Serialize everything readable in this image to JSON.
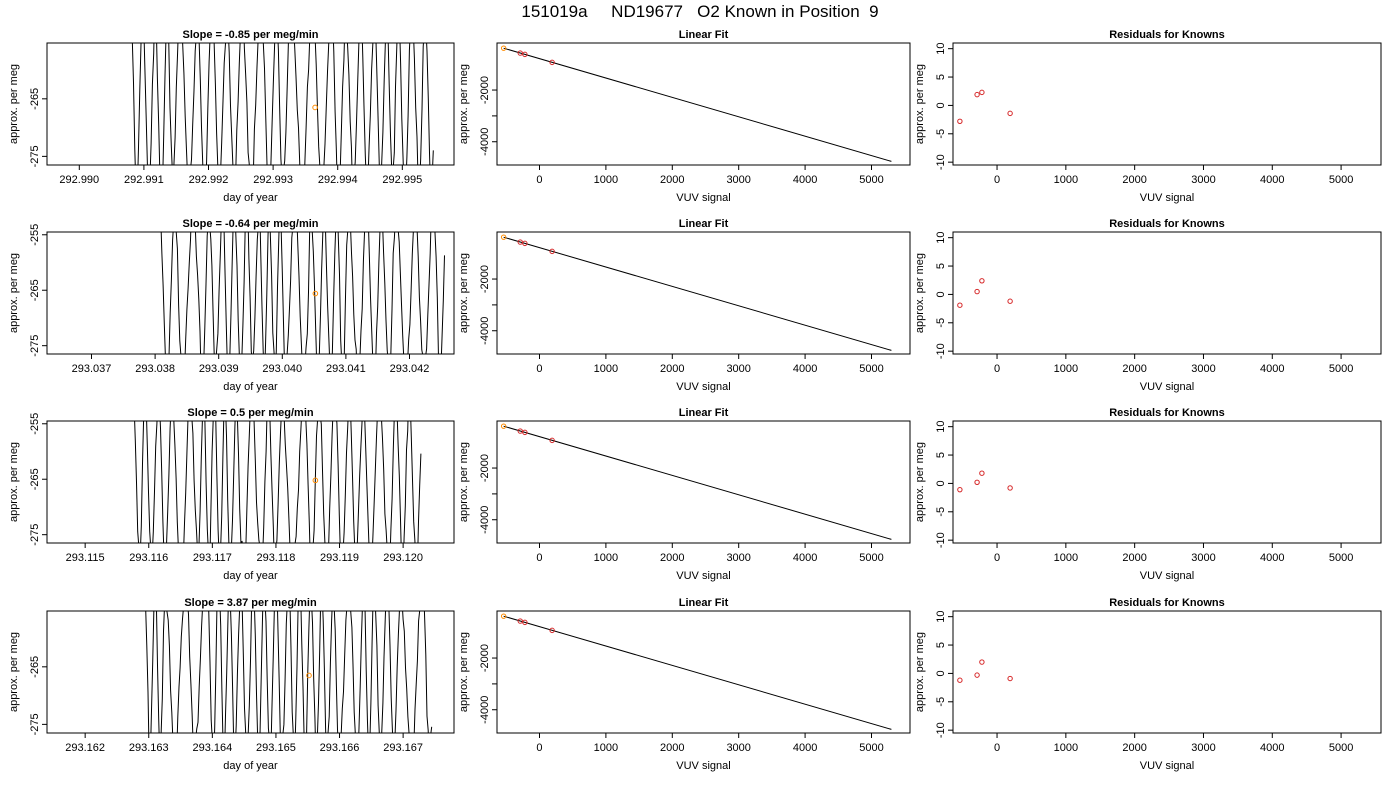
{
  "page": {
    "title": "151019a     ND19677   O2 Known in Position  9"
  },
  "colors": {
    "trace": "#000000",
    "known_highlight": "#ff8c00",
    "residual_point": "#d62728",
    "axis": "#000000"
  },
  "chart_data": [
    {
      "type": "line",
      "panel": "trace",
      "row": 1,
      "title": "Slope =  -0.85  per meg/min",
      "xlabel": "day of year",
      "ylabel": "approx. per meg",
      "xlim": [
        292.9895,
        292.9958
      ],
      "ylim": [
        -276.5,
        -255.3
      ],
      "xticks": [
        292.99,
        292.991,
        292.992,
        292.993,
        292.994,
        292.995
      ],
      "xtick_labels": [
        "292.990",
        "292.991",
        "292.992",
        "292.993",
        "292.994",
        "292.995"
      ],
      "yticks": [
        -275,
        -265
      ],
      "ytick_labels": [
        "-275",
        "-265"
      ],
      "trace_range": [
        292.9908,
        292.99548
      ],
      "trace_seed": 11,
      "highlight_point": {
        "x": 292.99365,
        "y": -266.5
      }
    },
    {
      "type": "line",
      "panel": "fit",
      "row": 1,
      "title": "Linear Fit",
      "xlabel": "VUV signal",
      "ylabel": "approx. per meg",
      "xlim": [
        -640,
        5580
      ],
      "ylim": [
        -4900,
        -180
      ],
      "xticks": [
        0,
        1000,
        2000,
        3000,
        4000,
        5000
      ],
      "xtick_labels": [
        "0",
        "1000",
        "2000",
        "3000",
        "4000",
        "5000"
      ],
      "yticks": [
        -4000,
        -3000,
        -2000
      ],
      "ytick_labels": [
        "-4000",
        "",
        "-2000"
      ],
      "line": {
        "x": [
          -540,
          5300
        ],
        "y": [
          -380,
          -4760
        ]
      },
      "known_points": [
        {
          "x": -540,
          "y": -380
        }
      ],
      "points": [
        {
          "x": -290,
          "y": -570
        },
        {
          "x": -220,
          "y": -620
        },
        {
          "x": 190,
          "y": -930
        }
      ]
    },
    {
      "type": "scatter",
      "panel": "residuals",
      "row": 1,
      "title": "Residuals for Knowns",
      "xlabel": "VUV signal",
      "ylabel": "approx. per meg",
      "xlim": [
        -640,
        5580
      ],
      "ylim": [
        -10.5,
        11
      ],
      "xticks": [
        0,
        1000,
        2000,
        3000,
        4000,
        5000
      ],
      "xtick_labels": [
        "0",
        "1000",
        "2000",
        "3000",
        "4000",
        "5000"
      ],
      "yticks": [
        -10,
        -5,
        0,
        5,
        10
      ],
      "ytick_labels": [
        "-10",
        "-5",
        "0",
        "5",
        "10"
      ],
      "points": [
        {
          "x": -540,
          "y": -2.8
        },
        {
          "x": -290,
          "y": 1.9
        },
        {
          "x": -220,
          "y": 2.3
        },
        {
          "x": 190,
          "y": -1.4
        }
      ]
    },
    {
      "type": "line",
      "panel": "trace",
      "row": 2,
      "title": "Slope =  -0.64  per meg/min",
      "xlabel": "day of year",
      "ylabel": "approx. per meg",
      "xlim": [
        293.0363,
        293.0427
      ],
      "ylim": [
        -276.5,
        -254.5
      ],
      "xticks": [
        293.037,
        293.038,
        293.039,
        293.04,
        293.041,
        293.042
      ],
      "xtick_labels": [
        "293.037",
        "293.038",
        "293.039",
        "293.040",
        "293.041",
        "293.042"
      ],
      "yticks": [
        -275,
        -265,
        -255
      ],
      "ytick_labels": [
        "-275",
        "-265",
        "-255"
      ],
      "trace_range": [
        293.03805,
        293.04255
      ],
      "trace_seed": 23,
      "highlight_point": {
        "x": 293.04052,
        "y": -265.6
      }
    },
    {
      "type": "line",
      "panel": "fit",
      "row": 2,
      "title": "Linear Fit",
      "xlabel": "VUV signal",
      "ylabel": "approx. per meg",
      "xlim": [
        -640,
        5580
      ],
      "ylim": [
        -4900,
        -180
      ],
      "xticks": [
        0,
        1000,
        2000,
        3000,
        4000,
        5000
      ],
      "xtick_labels": [
        "0",
        "1000",
        "2000",
        "3000",
        "4000",
        "5000"
      ],
      "yticks": [
        -4000,
        -3000,
        -2000
      ],
      "ytick_labels": [
        "-4000",
        "",
        "-2000"
      ],
      "line": {
        "x": [
          -540,
          5300
        ],
        "y": [
          -380,
          -4760
        ]
      },
      "known_points": [
        {
          "x": -540,
          "y": -380
        }
      ],
      "points": [
        {
          "x": -290,
          "y": -570
        },
        {
          "x": -220,
          "y": -620
        },
        {
          "x": 190,
          "y": -930
        }
      ]
    },
    {
      "type": "scatter",
      "panel": "residuals",
      "row": 2,
      "title": "Residuals for Knowns",
      "xlabel": "VUV signal",
      "ylabel": "approx. per meg",
      "xlim": [
        -640,
        5580
      ],
      "ylim": [
        -10.5,
        11
      ],
      "xticks": [
        0,
        1000,
        2000,
        3000,
        4000,
        5000
      ],
      "xtick_labels": [
        "0",
        "1000",
        "2000",
        "3000",
        "4000",
        "5000"
      ],
      "yticks": [
        -10,
        -5,
        0,
        5,
        10
      ],
      "ytick_labels": [
        "-10",
        "-5",
        "0",
        "5",
        "10"
      ],
      "points": [
        {
          "x": -540,
          "y": -1.9
        },
        {
          "x": -290,
          "y": 0.5
        },
        {
          "x": -220,
          "y": 2.4
        },
        {
          "x": 190,
          "y": -1.2
        }
      ]
    },
    {
      "type": "line",
      "panel": "trace",
      "row": 3,
      "title": "Slope =  0.5  per meg/min",
      "xlabel": "day of year",
      "ylabel": "approx. per meg",
      "xlim": [
        293.1144,
        293.1208
      ],
      "ylim": [
        -276.5,
        -254.5
      ],
      "xticks": [
        293.115,
        293.116,
        293.117,
        293.118,
        293.119,
        293.12
      ],
      "xtick_labels": [
        "293.115",
        "293.116",
        "293.117",
        "293.118",
        "293.119",
        "293.120"
      ],
      "yticks": [
        -275,
        -265,
        -255
      ],
      "ytick_labels": [
        "-275",
        "-265",
        "-255"
      ],
      "trace_range": [
        293.11575,
        293.12028
      ],
      "trace_seed": 37,
      "highlight_point": {
        "x": 293.11862,
        "y": -265.2
      }
    },
    {
      "type": "line",
      "panel": "fit",
      "row": 3,
      "title": "Linear Fit",
      "xlabel": "VUV signal",
      "ylabel": "approx. per meg",
      "xlim": [
        -640,
        5580
      ],
      "ylim": [
        -4900,
        -180
      ],
      "xticks": [
        0,
        1000,
        2000,
        3000,
        4000,
        5000
      ],
      "xtick_labels": [
        "0",
        "1000",
        "2000",
        "3000",
        "4000",
        "5000"
      ],
      "yticks": [
        -4000,
        -3000,
        -2000
      ],
      "ytick_labels": [
        "-4000",
        "",
        "-2000"
      ],
      "line": {
        "x": [
          -540,
          5300
        ],
        "y": [
          -380,
          -4760
        ]
      },
      "known_points": [
        {
          "x": -540,
          "y": -380
        }
      ],
      "points": [
        {
          "x": -290,
          "y": -570
        },
        {
          "x": -220,
          "y": -620
        },
        {
          "x": 190,
          "y": -930
        }
      ]
    },
    {
      "type": "scatter",
      "panel": "residuals",
      "row": 3,
      "title": "Residuals for Knowns",
      "xlabel": "VUV signal",
      "ylabel": "approx. per meg",
      "xlim": [
        -640,
        5580
      ],
      "ylim": [
        -10.5,
        11
      ],
      "xticks": [
        0,
        1000,
        2000,
        3000,
        4000,
        5000
      ],
      "xtick_labels": [
        "0",
        "1000",
        "2000",
        "3000",
        "4000",
        "5000"
      ],
      "yticks": [
        -10,
        -5,
        0,
        5,
        10
      ],
      "ytick_labels": [
        "-10",
        "-5",
        "0",
        "5",
        "10"
      ],
      "points": [
        {
          "x": -540,
          "y": -1.1
        },
        {
          "x": -290,
          "y": 0.2
        },
        {
          "x": -220,
          "y": 1.8
        },
        {
          "x": 190,
          "y": -0.8
        }
      ]
    },
    {
      "type": "line",
      "panel": "trace",
      "row": 4,
      "title": "Slope =  3.87  per meg/min",
      "xlabel": "day of year",
      "ylabel": "approx. per meg",
      "xlim": [
        293.1614,
        293.1678
      ],
      "ylim": [
        -276.5,
        -255.3
      ],
      "xticks": [
        293.162,
        293.163,
        293.164,
        293.165,
        293.166,
        293.167
      ],
      "xtick_labels": [
        "293.162",
        "293.163",
        "293.164",
        "293.165",
        "293.166",
        "293.167"
      ],
      "yticks": [
        -275,
        -265
      ],
      "ytick_labels": [
        "-275",
        "-265"
      ],
      "trace_range": [
        293.16295,
        293.16745
      ],
      "trace_seed": 53,
      "highlight_point": {
        "x": 293.16552,
        "y": -266.5
      }
    },
    {
      "type": "line",
      "panel": "fit",
      "row": 4,
      "title": "Linear Fit",
      "xlabel": "VUV signal",
      "ylabel": "approx. per meg",
      "xlim": [
        -640,
        5580
      ],
      "ylim": [
        -4900,
        -180
      ],
      "xticks": [
        0,
        1000,
        2000,
        3000,
        4000,
        5000
      ],
      "xtick_labels": [
        "0",
        "1000",
        "2000",
        "3000",
        "4000",
        "5000"
      ],
      "yticks": [
        -4000,
        -3000,
        -2000
      ],
      "ytick_labels": [
        "-4000",
        "",
        "-2000"
      ],
      "line": {
        "x": [
          -540,
          5300
        ],
        "y": [
          -380,
          -4760
        ]
      },
      "known_points": [
        {
          "x": -540,
          "y": -380
        }
      ],
      "points": [
        {
          "x": -290,
          "y": -570
        },
        {
          "x": -220,
          "y": -620
        },
        {
          "x": 190,
          "y": -930
        }
      ]
    },
    {
      "type": "scatter",
      "panel": "residuals",
      "row": 4,
      "title": "Residuals for Knowns",
      "xlabel": "VUV signal",
      "ylabel": "approx. per meg",
      "xlim": [
        -640,
        5580
      ],
      "ylim": [
        -10.5,
        11
      ],
      "xticks": [
        0,
        1000,
        2000,
        3000,
        4000,
        5000
      ],
      "xtick_labels": [
        "0",
        "1000",
        "2000",
        "3000",
        "4000",
        "5000"
      ],
      "yticks": [
        -10,
        -5,
        0,
        5,
        10
      ],
      "ytick_labels": [
        "-10",
        "-5",
        "0",
        "5",
        "10"
      ],
      "points": [
        {
          "x": -540,
          "y": -1.2
        },
        {
          "x": -290,
          "y": -0.3
        },
        {
          "x": -220,
          "y": 2.0
        },
        {
          "x": 190,
          "y": -0.9
        }
      ]
    }
  ]
}
